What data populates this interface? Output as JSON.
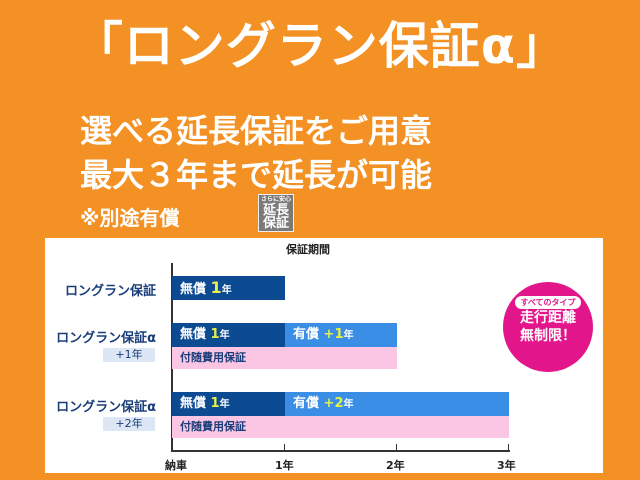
{
  "title": "「ロングラン保証α」",
  "subtitle_lines": [
    "選べる延長保証をご用意",
    "最大３年まで延長が可能"
  ],
  "note": "※別途有償",
  "badge": {
    "small": "さらに安心",
    "line1": "延長",
    "line2": "保証"
  },
  "chart": {
    "header": "保証期間",
    "axis_ticks": [
      "納車",
      "1年",
      "2年",
      "3年"
    ],
    "rows": [
      {
        "label": "ロングラン保証",
        "free": "無償",
        "free_years": "1",
        "year_unit": "年"
      },
      {
        "label": "ロングラン保証α",
        "tag": "+1年",
        "free": "無償",
        "free_years": "1",
        "year_unit": "年",
        "paid": "有償",
        "paid_years": "+1",
        "extra": "付随費用保証"
      },
      {
        "label": "ロングラン保証α",
        "tag": "+2年",
        "free": "無償",
        "free_years": "1",
        "year_unit": "年",
        "paid": "有償",
        "paid_years": "+2",
        "extra": "付随費用保証"
      }
    ]
  },
  "circle": {
    "pill": "すべてのタイプ",
    "line1": "走行距離",
    "line2": "無制限！"
  },
  "colors": {
    "background": "#f39124",
    "free": "#0c4a92",
    "paid": "#3a8ee6",
    "extra": "#fbc6e3",
    "circle": "#e2168a"
  }
}
